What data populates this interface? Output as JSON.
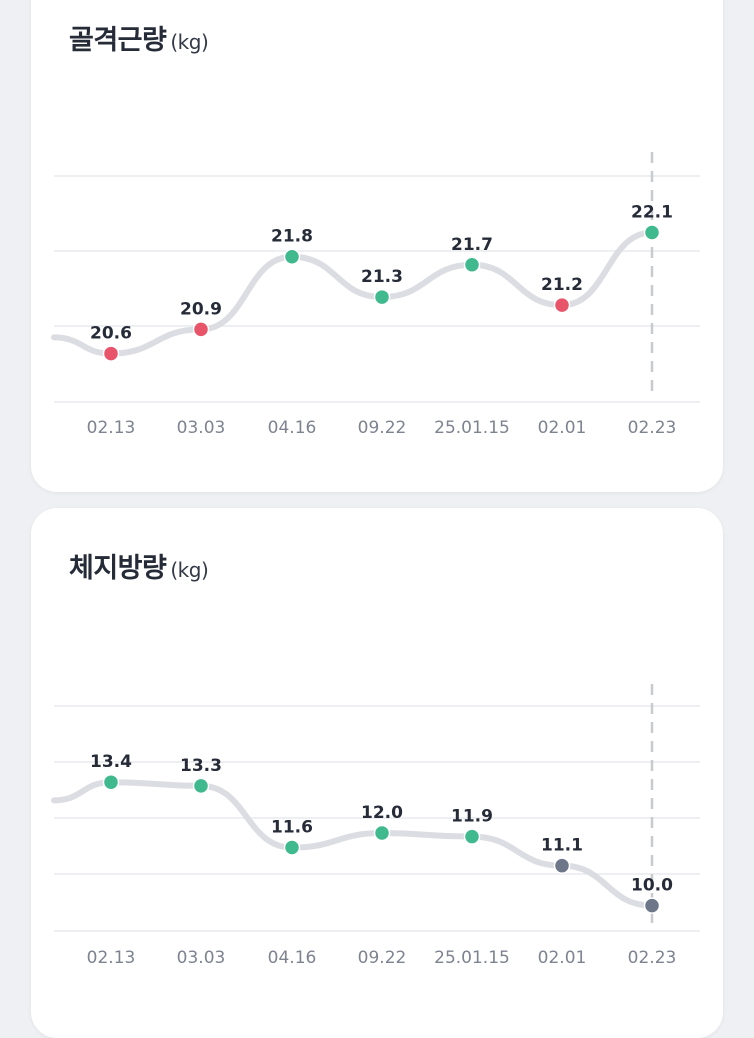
{
  "colors": {
    "green": "#3fb98d",
    "red": "#e8546a",
    "gray": "#6e778a",
    "line": "#dcdde2",
    "grid": "#e9eaee",
    "dash": "#c8cace"
  },
  "chart_data": [
    {
      "type": "line",
      "title": "골격근량",
      "unit": "(kg)",
      "categories": [
        "02.13",
        "03.03",
        "04.16",
        "09.22",
        "25.01.15",
        "02.01",
        "02.23"
      ],
      "values": [
        20.6,
        20.9,
        21.8,
        21.3,
        21.7,
        21.2,
        22.1
      ],
      "point_status": [
        "red",
        "red",
        "green",
        "green",
        "green",
        "red",
        "green"
      ],
      "entry_value": 20.8,
      "y_range": [
        20.0,
        22.8
      ],
      "grid": true,
      "highlighted_category": "02.23"
    },
    {
      "type": "line",
      "title": "체지방량",
      "unit": "(kg)",
      "categories": [
        "02.13",
        "03.03",
        "04.16",
        "09.22",
        "25.01.15",
        "02.01",
        "02.23"
      ],
      "values": [
        13.4,
        13.3,
        11.6,
        12.0,
        11.9,
        11.1,
        10.0
      ],
      "point_status": [
        "green",
        "green",
        "green",
        "green",
        "green",
        "gray",
        "gray"
      ],
      "entry_value": 12.9,
      "y_range": [
        9.3,
        15.5
      ],
      "grid": true,
      "highlighted_category": "02.23"
    }
  ]
}
